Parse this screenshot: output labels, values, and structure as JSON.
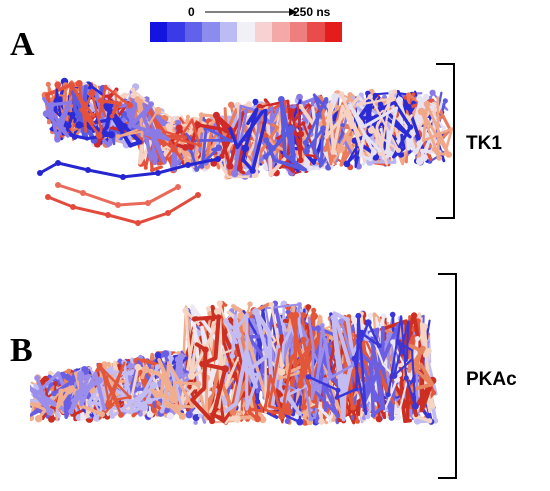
{
  "time_scale": {
    "start_label": "0",
    "end_label": "250 ns",
    "colors": [
      "#1414e0",
      "#3a3ae6",
      "#6161ea",
      "#8c8cef",
      "#bcbcf4",
      "#f0f0f6",
      "#f8d2d2",
      "#f4a8a8",
      "#ef7e7e",
      "#ea4c4c",
      "#e41c1c"
    ]
  },
  "panels": [
    {
      "letter": "A",
      "protein_label": "TK1",
      "palette": [
        "#2b2bd6",
        "#5a5ae0",
        "#8a7ae6",
        "#b9b3f0",
        "#e6e2f2",
        "#f6d2c4",
        "#f2a888",
        "#ea7c5c",
        "#e4523c",
        "#cf2a2a"
      ],
      "icon": "molecular-trajectory-ensemble"
    },
    {
      "letter": "B",
      "protein_label": "PKAc",
      "palette": [
        "#3a36d8",
        "#6a5ee2",
        "#9b8eea",
        "#c3bcf2",
        "#ece8f4",
        "#f5d4c2",
        "#f0ae8e",
        "#e9825e",
        "#e2563a",
        "#cc2f22"
      ],
      "icon": "molecular-trajectory-ensemble"
    }
  ]
}
